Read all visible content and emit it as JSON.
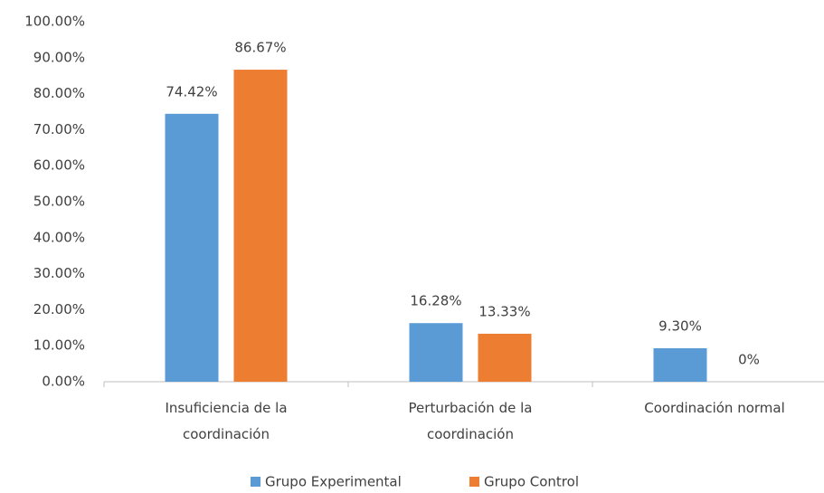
{
  "chart_data": {
    "type": "bar",
    "categories": [
      "Insuficiencia de la coordinación",
      "Perturbación de la coordinación",
      "Coordinación normal"
    ],
    "series": [
      {
        "name": "Grupo Experimental",
        "color": "#5b9bd5",
        "values": [
          74.42,
          16.28,
          9.3
        ],
        "value_labels": [
          "74.42%",
          "16.28%",
          "9.30%"
        ]
      },
      {
        "name": "Grupo Control",
        "color": "#ed7d31",
        "values": [
          86.67,
          13.33,
          0
        ],
        "value_labels": [
          "86.67%",
          "13.33%",
          "0%"
        ]
      }
    ],
    "ylim": [
      0,
      100
    ],
    "yticks": [
      {
        "value": 0,
        "label": "0.00%"
      },
      {
        "value": 10,
        "label": "10.00%"
      },
      {
        "value": 20,
        "label": "20.00%"
      },
      {
        "value": 30,
        "label": "30.00%"
      },
      {
        "value": 40,
        "label": "40.00%"
      },
      {
        "value": 50,
        "label": "50.00%"
      },
      {
        "value": 60,
        "label": "60.00%"
      },
      {
        "value": 70,
        "label": "70.00%"
      },
      {
        "value": 80,
        "label": "80.00%"
      },
      {
        "value": 90,
        "label": "90.00%"
      },
      {
        "value": 100,
        "label": "100.00%"
      }
    ],
    "grid": false,
    "legend": "bottom"
  }
}
